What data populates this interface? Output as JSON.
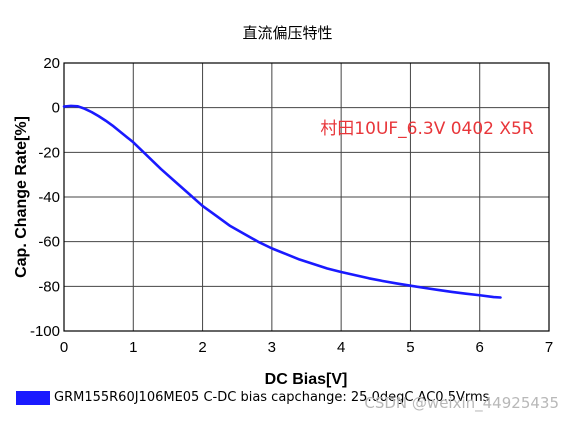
{
  "chart_data": {
    "type": "line",
    "title": "直流偏压特性",
    "xlabel": "DC Bias[V]",
    "ylabel": "Cap. Change Rate[%]",
    "xlim": [
      0,
      7
    ],
    "ylim": [
      -100,
      20
    ],
    "xticks": [
      0,
      1,
      2,
      3,
      4,
      5,
      6,
      7
    ],
    "yticks": [
      20,
      0,
      -20,
      -40,
      -60,
      -80,
      -100
    ],
    "grid": true,
    "annotation": "村田10UF_6.3V 0402 X5R",
    "colors": {
      "series": "#1a1aff",
      "annotation": "#e8363a",
      "grid": "#000000"
    },
    "series": [
      {
        "name": "GRM155R60J106ME05 C-DC bias capchange: 25.0degC  AC0.5Vrms",
        "x": [
          0,
          0.1,
          0.2,
          0.3,
          0.4,
          0.5,
          0.6,
          0.7,
          0.8,
          0.9,
          1.0,
          1.2,
          1.4,
          1.6,
          1.8,
          2.0,
          2.2,
          2.4,
          2.6,
          2.8,
          3.0,
          3.2,
          3.4,
          3.6,
          3.8,
          4.0,
          4.2,
          4.4,
          4.6,
          4.8,
          5.0,
          5.2,
          5.4,
          5.6,
          5.8,
          6.0,
          6.2,
          6.3
        ],
        "y": [
          0.5,
          0.8,
          0.6,
          -0.5,
          -2.0,
          -3.8,
          -5.8,
          -8.0,
          -10.5,
          -13.0,
          -15.5,
          -21.5,
          -27.5,
          -33.0,
          -38.5,
          -44.0,
          -48.5,
          -53.0,
          -56.5,
          -60.0,
          -63.0,
          -65.5,
          -68.0,
          -70.0,
          -72.0,
          -73.6,
          -75.0,
          -76.4,
          -77.6,
          -78.7,
          -79.7,
          -80.7,
          -81.6,
          -82.5,
          -83.3,
          -84.0,
          -84.8,
          -85.0
        ]
      }
    ]
  },
  "watermark": "CSDN @weixin_44925435"
}
